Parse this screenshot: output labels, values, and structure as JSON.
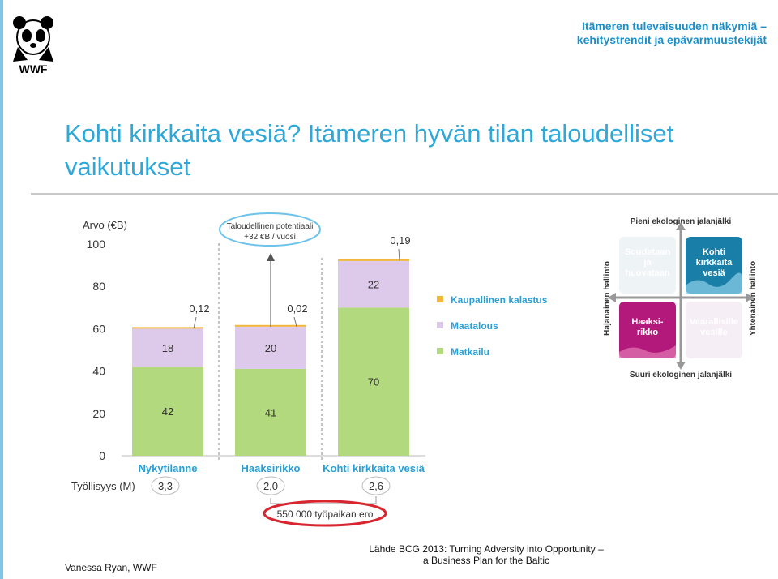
{
  "header": {
    "logo_text": "WWF",
    "doc_title_line1": "Itämeren tulevaisuuden näkymiä –",
    "doc_title_line2": "kehitystrendit ja epävarmuustekijät"
  },
  "title": {
    "line1": "Kohti kirkkaita vesiä? Itämeren hyvän tilan taloudelliset",
    "line2": "vaikutukset"
  },
  "chart_data": {
    "type": "bar",
    "stacked": true,
    "ylabel": "Arvo (€B)",
    "ylim": [
      0,
      100
    ],
    "yticks": [
      0,
      20,
      40,
      60,
      80,
      100
    ],
    "categories": [
      "Nykytilanne",
      "Haaksirikko",
      "Kohti kirkkaita vesiä"
    ],
    "series": [
      {
        "name": "Matkailu",
        "color": "#b3d97e",
        "values": [
          42,
          41,
          70
        ],
        "labels": [
          "42",
          "41",
          "70"
        ]
      },
      {
        "name": "Maatalous",
        "color": "#ddc9ea",
        "values": [
          18,
          20,
          22
        ],
        "labels": [
          "18",
          "20",
          "22"
        ]
      },
      {
        "name": "Kaupallinen kalastus",
        "color": "#f2b63a",
        "values": [
          0.12,
          0.02,
          0.19
        ],
        "labels": [
          "0,12",
          "0,02",
          "0,19"
        ]
      }
    ],
    "annotation": {
      "line1": "Taloudellinen potentiaali",
      "line2": "+32 €B / vuosi"
    },
    "employment": {
      "label": "Työllisyys (M)",
      "values": [
        "3,3",
        "2,0",
        "2,6"
      ],
      "difference": "550 000 työpaikan ero"
    },
    "legend_position": "right"
  },
  "matrix": {
    "top_label": "Pieni ekologinen jalanjälki",
    "bottom_label": "Suuri ekologinen jalanjälki",
    "left_label": "Hajanainen hallinto",
    "right_label": "Yhtenäinen hallinto",
    "quadrants": {
      "top_left": "Soudetaan ja huovataan",
      "top_right": "Kohti kirkkaita vesiä",
      "bottom_left": "Haaksi- rikko",
      "bottom_right": "Vaarallisille vesille"
    },
    "colors": {
      "top_right": "#1a7fa8",
      "bottom_left": "#b2197a"
    }
  },
  "footer": {
    "author": "Vanessa Ryan, WWF",
    "source_line1": "Lähde BCG 2013: Turning Adversity into Opportunity –",
    "source_line2": "a Business Plan for the Baltic"
  }
}
